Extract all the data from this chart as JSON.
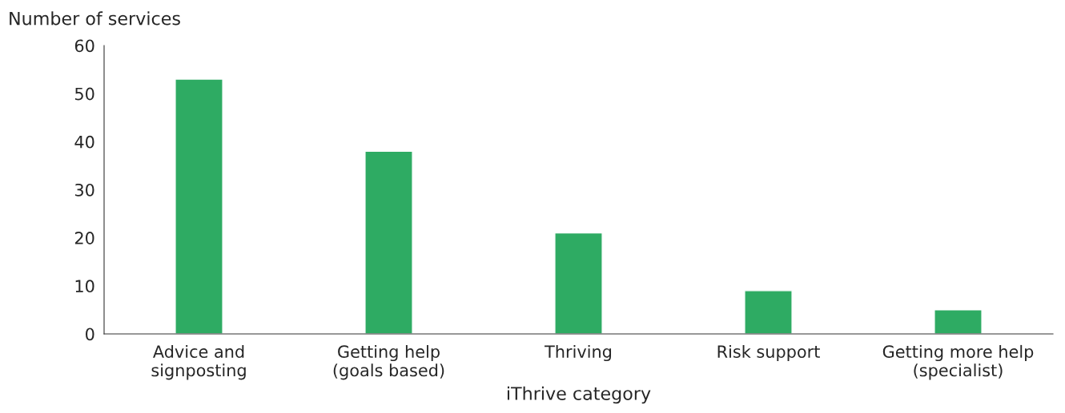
{
  "chart_data": {
    "type": "bar",
    "ylabel": "Number of services",
    "xlabel": "iThrive category",
    "categories": [
      "Advice and\nsignposting",
      "Getting help\n(goals based)",
      "Thriving",
      "Risk support",
      "Getting more help\n(specialist)"
    ],
    "values": [
      53,
      38,
      21,
      9,
      5
    ],
    "color": "#2eab63",
    "ylim": [
      0,
      60
    ],
    "yticks": [
      0,
      10,
      20,
      30,
      40,
      50,
      60
    ],
    "grid": false,
    "legend": false
  }
}
